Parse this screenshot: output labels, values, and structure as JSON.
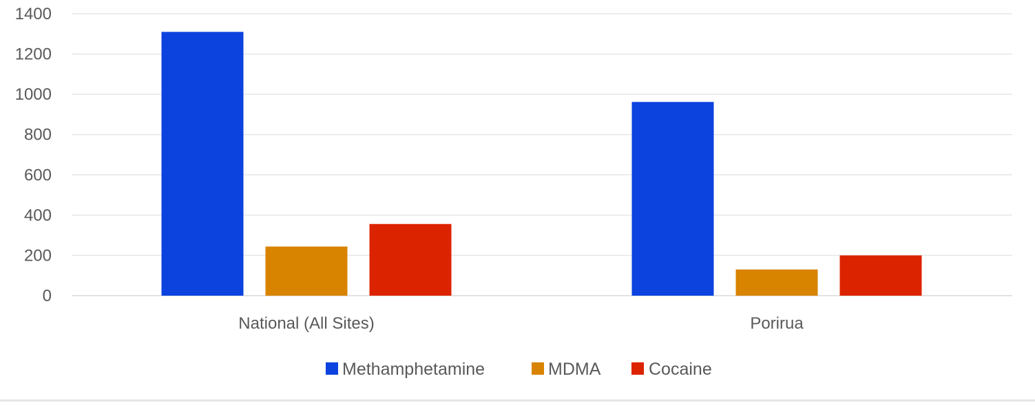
{
  "chart_data": {
    "type": "bar",
    "categories": [
      "National (All Sites)",
      "Porirua"
    ],
    "series": [
      {
        "name": "Methamphetamine",
        "color": "#0c43df",
        "values": [
          1310,
          962
        ]
      },
      {
        "name": "MDMA",
        "color": "#d88400",
        "values": [
          244,
          130
        ]
      },
      {
        "name": "Cocaine",
        "color": "#dc2300",
        "values": [
          356,
          200
        ]
      }
    ],
    "yticks": [
      "0",
      "200",
      "400",
      "600",
      "800",
      "1000",
      "1200",
      "1400"
    ],
    "ylim": [
      0,
      1400
    ],
    "grid": true,
    "legend_position": "bottom"
  }
}
